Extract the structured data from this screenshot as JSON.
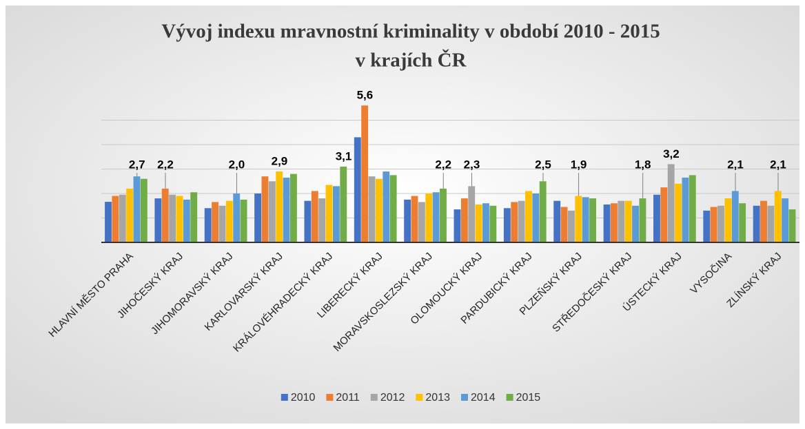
{
  "chart_data": {
    "type": "bar",
    "title": [
      "Vývoj indexu mravnostní kriminality v období 2010 - 2015",
      "v krajích ČR"
    ],
    "categories": [
      "HLAVNÍ MĚSTO PRAHA",
      "JIHOČESKÝ KRAJ",
      "JIHOMORAVSKÝ KRAJ",
      "KARLOVARSKÝ KRAJ",
      "KRÁLOVÉHRADECKÝ KRAJ",
      "LIBERECKÝ KRAJ",
      "MORAVSKOSLEZSKÝ KRAJ",
      "OLOMOUCKÝ KRAJ",
      "PARDUBICKÝ KRAJ",
      "PLZEŇSKÝ KRAJ",
      "STŘEDOČESKÝ KRAJ",
      "ÚSTECKÝ KRAJ",
      "VYSOČINA",
      "ZLÍNSKÝ KRAJ"
    ],
    "series": [
      {
        "name": "2010",
        "color": "#4472c4",
        "values": [
          1.66,
          1.8,
          1.4,
          2.0,
          1.7,
          4.3,
          1.75,
          1.35,
          1.4,
          1.7,
          1.55,
          1.95,
          1.3,
          1.5
        ],
        "value_labels": [
          null,
          null,
          null,
          null,
          null,
          null,
          null,
          null,
          null,
          null,
          null,
          null,
          null,
          null
        ]
      },
      {
        "name": "2011",
        "color": "#ed7d31",
        "values": [
          1.9,
          2.2,
          1.65,
          2.7,
          2.1,
          5.6,
          1.9,
          1.8,
          1.65,
          1.45,
          1.6,
          2.25,
          1.45,
          1.7
        ],
        "value_labels": [
          null,
          "2,2",
          null,
          null,
          null,
          "5,6",
          null,
          null,
          null,
          null,
          null,
          null,
          null,
          null
        ]
      },
      {
        "name": "2012",
        "color": "#a5a5a5",
        "values": [
          1.95,
          1.95,
          1.5,
          2.5,
          1.8,
          2.7,
          1.65,
          2.3,
          1.7,
          1.3,
          1.7,
          3.2,
          1.5,
          1.5
        ],
        "value_labels": [
          null,
          null,
          null,
          null,
          null,
          null,
          null,
          "2,3",
          null,
          null,
          null,
          "3,2",
          null,
          null
        ]
      },
      {
        "name": "2013",
        "color": "#ffc000",
        "values": [
          2.2,
          1.9,
          1.7,
          2.9,
          2.35,
          2.6,
          2.0,
          1.55,
          2.1,
          1.9,
          1.7,
          2.4,
          1.8,
          2.1
        ],
        "value_labels": [
          null,
          null,
          null,
          "2,9",
          null,
          null,
          null,
          null,
          null,
          "1,9",
          null,
          null,
          null,
          "2,1"
        ]
      },
      {
        "name": "2014",
        "color": "#5b9bd5",
        "values": [
          2.7,
          1.75,
          2.0,
          2.65,
          2.3,
          2.9,
          2.05,
          1.6,
          2.0,
          1.85,
          1.5,
          2.65,
          2.1,
          1.8
        ],
        "value_labels": [
          "2,7",
          null,
          "2,0",
          null,
          null,
          null,
          null,
          null,
          null,
          null,
          null,
          null,
          "2,1",
          null
        ]
      },
      {
        "name": "2015",
        "color": "#70ad47",
        "values": [
          2.6,
          2.05,
          1.75,
          2.8,
          3.1,
          2.75,
          2.2,
          1.5,
          2.5,
          1.8,
          1.8,
          2.75,
          1.6,
          1.35
        ],
        "value_labels": [
          null,
          null,
          null,
          null,
          "3,1",
          null,
          "2,2",
          null,
          "2,5",
          null,
          "1,8",
          null,
          null,
          null
        ]
      }
    ],
    "ylim": [
      0,
      6
    ],
    "yticks": [
      0,
      1,
      2,
      3,
      4,
      5,
      6
    ],
    "ytick_labels": false,
    "grid": true,
    "legend": "bottom"
  }
}
